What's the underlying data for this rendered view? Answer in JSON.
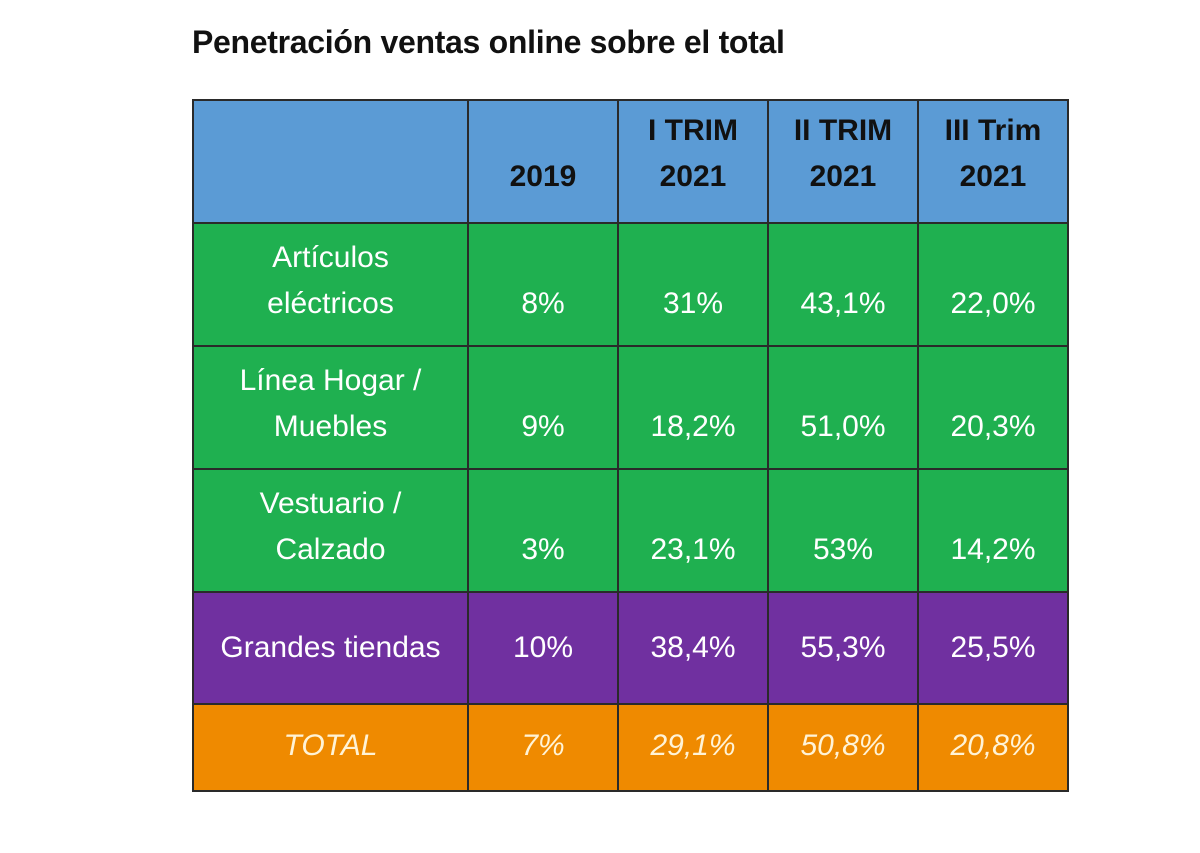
{
  "title": "Penetración ventas online sobre el total",
  "colors": {
    "header": "#5b9bd5",
    "category": "#1fb050",
    "grandes_tiendas": "#7030a0",
    "total": "#ef8a00",
    "body_text": "#ffffff",
    "total_text": "#fff3d6"
  },
  "chart_data": {
    "type": "table",
    "columns": [
      "",
      "2019",
      "I TRIM\n2021",
      "II TRIM\n2021",
      "III Trim\n2021"
    ],
    "rows": [
      {
        "label": "Artículos\neléctricos",
        "values": [
          "8%",
          "31%",
          "43,1%",
          "22,0%"
        ],
        "group": "category"
      },
      {
        "label": "Línea Hogar /\nMuebles",
        "values": [
          "9%",
          "18,2%",
          "51,0%",
          "20,3%"
        ],
        "group": "category"
      },
      {
        "label": "Vestuario /\nCalzado",
        "values": [
          "3%",
          "23,1%",
          "53%",
          "14,2%"
        ],
        "group": "category"
      },
      {
        "label": "Grandes tiendas",
        "values": [
          "10%",
          "38,4%",
          "55,3%",
          "25,5%"
        ],
        "group": "grandes_tiendas"
      },
      {
        "label": "TOTAL",
        "values": [
          "7%",
          "29,1%",
          "50,8%",
          "20,8%"
        ],
        "group": "total"
      }
    ]
  }
}
